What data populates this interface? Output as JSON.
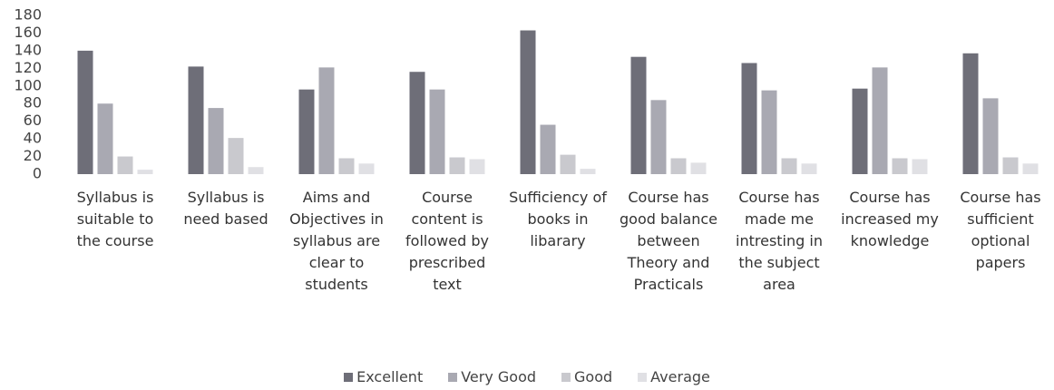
{
  "chart_data": {
    "type": "bar",
    "categories": [
      "Syllabus is suitable to the course",
      "Syllabus is need based",
      "Aims and Objectives in syllabus are clear to students",
      "Course content is followed by prescribed text",
      "Sufficiency of books in libarary",
      "Course has good balance between Theory and Practicals",
      "Course has made me intresting in the subject area",
      "Course has increased my knowledge",
      "Course has sufficient optional papers"
    ],
    "series": [
      {
        "name": "Excellent",
        "color": "#6e6e78",
        "values": [
          140,
          122,
          96,
          116,
          163,
          133,
          126,
          97,
          137
        ]
      },
      {
        "name": "Very Good",
        "color": "#a9a9b2",
        "values": [
          80,
          75,
          121,
          96,
          56,
          84,
          95,
          121,
          86
        ]
      },
      {
        "name": "Good",
        "color": "#c9c9ce",
        "values": [
          20,
          41,
          18,
          19,
          22,
          18,
          18,
          18,
          19
        ]
      },
      {
        "name": "Average",
        "color": "#e0e0e4",
        "values": [
          5,
          8,
          12,
          17,
          6,
          13,
          12,
          17,
          12
        ]
      }
    ],
    "ylim": [
      0,
      180
    ],
    "yticks": [
      0,
      20,
      40,
      60,
      80,
      100,
      120,
      140,
      160,
      180
    ],
    "grid": false,
    "legend": "bottom"
  }
}
